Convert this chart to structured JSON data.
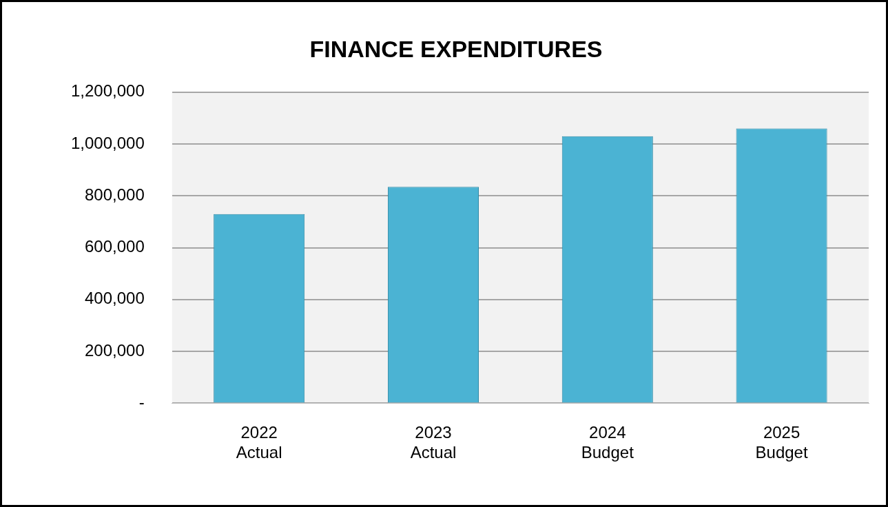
{
  "chart_data": {
    "type": "bar",
    "title": "FINANCE EXPENDITURES",
    "categories": [
      "2022\nActual",
      "2023\nActual",
      "2024\nBudget",
      "2025\nBudget"
    ],
    "values": [
      730000,
      835000,
      1030000,
      1060000
    ],
    "color": "#4bb3d3",
    "ylim": [
      0,
      1200000
    ],
    "yticks": [
      {
        "value": 0,
        "label": "-"
      },
      {
        "value": 200000,
        "label": "200,000"
      },
      {
        "value": 400000,
        "label": "400,000"
      },
      {
        "value": 600000,
        "label": "600,000"
      },
      {
        "value": 800000,
        "label": "800,000"
      },
      {
        "value": 1000000,
        "label": "1,000,000"
      },
      {
        "value": 1200000,
        "label": "1,200,000"
      }
    ],
    "grid": "y"
  }
}
